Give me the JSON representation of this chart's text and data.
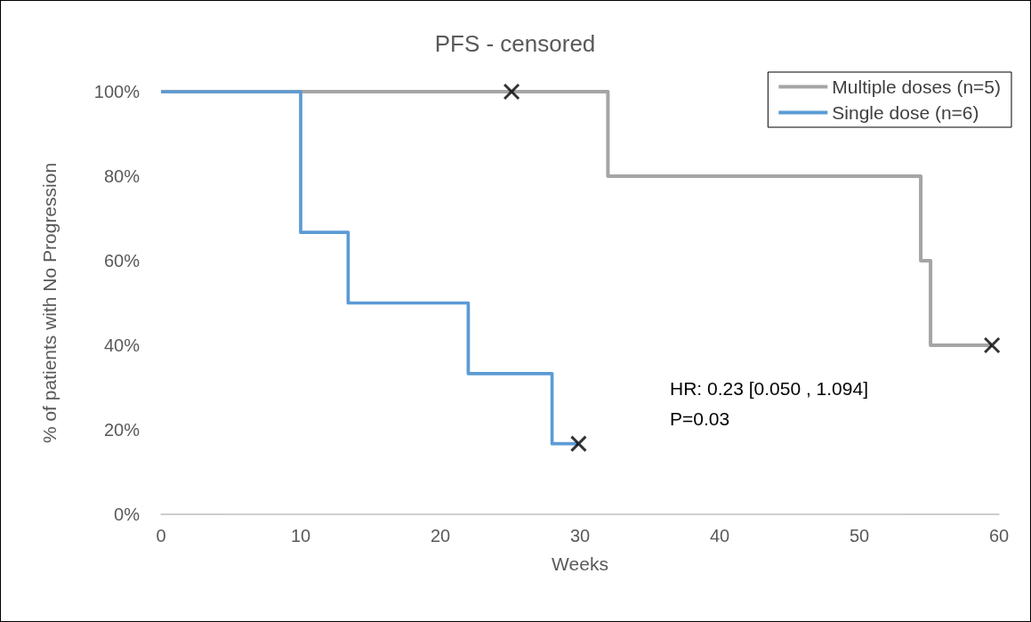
{
  "chart_data": {
    "type": "step",
    "title": "PFS - censored",
    "xlabel": "Weeks",
    "ylabel": "% of patients with No Progression",
    "series": [
      {
        "name": "Multiple doses (n=5)",
        "color": "#a5a5a5",
        "x": [
          0,
          32,
          54.4,
          55.1,
          59.5
        ],
        "values": [
          100,
          80,
          60,
          40,
          40
        ]
      },
      {
        "name": "Single dose (n=6)",
        "color": "#5b9bd5",
        "x": [
          0,
          10,
          13.4,
          22,
          28,
          29.9
        ],
        "values": [
          100,
          66.7,
          50,
          33.3,
          16.7,
          16.7
        ]
      },
      {
        "type": "scatter",
        "color": "#000000",
        "marker": "cross",
        "x": [
          25.1,
          59.5,
          29.9
        ],
        "values": [
          100,
          40,
          16.7
        ]
      }
    ],
    "xlim": [
      0,
      60
    ],
    "xticks": [
      0,
      10,
      20,
      30,
      40,
      50,
      60
    ],
    "ylim": [
      0,
      100
    ],
    "yticks": [
      {
        "value": 0,
        "label": "0%"
      },
      {
        "value": 20,
        "label": "20%"
      },
      {
        "value": 40,
        "label": "40%"
      },
      {
        "value": 60,
        "label": "60%"
      },
      {
        "value": 80,
        "label": "80%"
      },
      {
        "value": 100,
        "label": "100%"
      }
    ],
    "annotations": [
      "HR: 0.23 [0.050 , 1.094]",
      "P=0.03"
    ],
    "legend": "top right",
    "grid": false
  }
}
